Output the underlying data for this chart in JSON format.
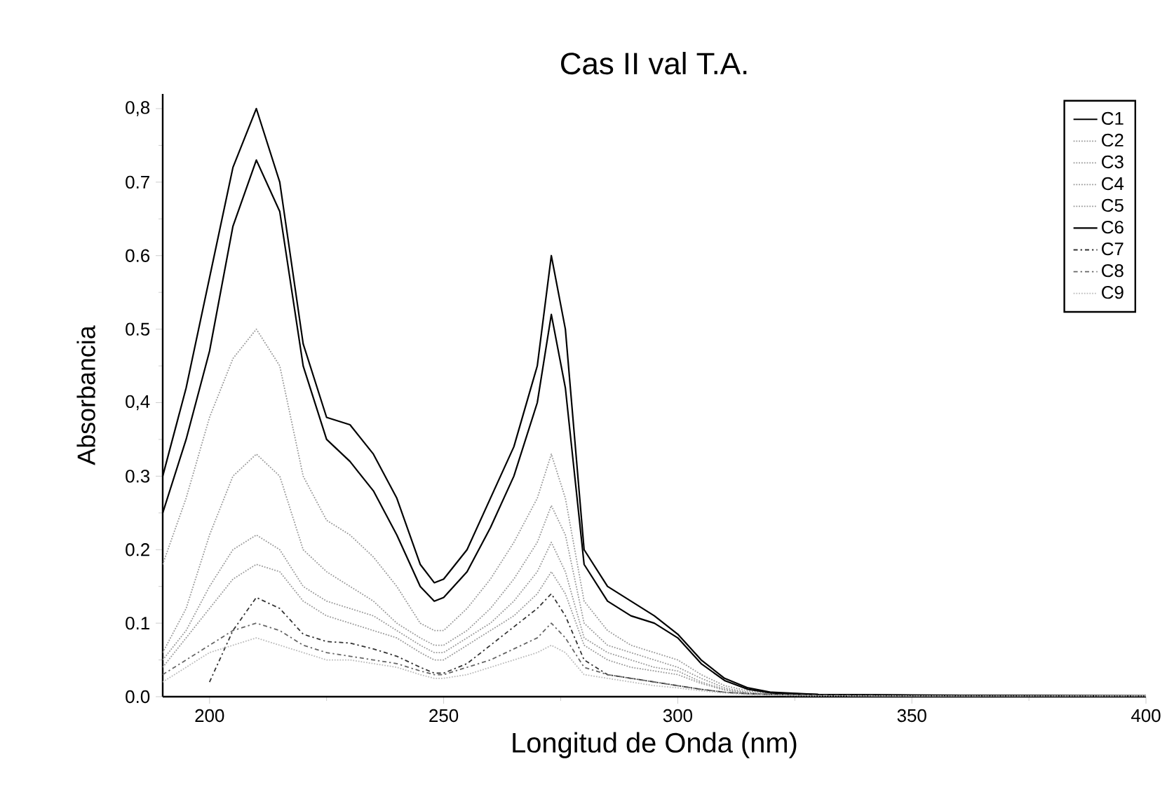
{
  "chart_data": {
    "type": "line",
    "title": "Cas II val T.A.",
    "xlabel": "Longitud de Onda (nm)",
    "ylabel": "Absorbancia",
    "x": [
      190,
      195,
      200,
      205,
      210,
      215,
      220,
      225,
      230,
      235,
      240,
      245,
      248,
      250,
      255,
      260,
      265,
      270,
      273,
      276,
      280,
      285,
      290,
      295,
      300,
      305,
      310,
      315,
      320,
      330,
      350,
      400
    ],
    "xlim": [
      190,
      400
    ],
    "xticks": [
      200,
      250,
      300,
      350,
      400
    ],
    "ylim": [
      0,
      0.82
    ],
    "yticks": [
      {
        "value": 0,
        "label": "0.0"
      },
      {
        "value": 0.1,
        "label": "0.1"
      },
      {
        "value": 0.2,
        "label": "0.2"
      },
      {
        "value": 0.3,
        "label": "0.3"
      },
      {
        "value": 0.4,
        "label": "0,4"
      },
      {
        "value": 0.5,
        "label": "0.5"
      },
      {
        "value": 0.6,
        "label": "0.6"
      },
      {
        "value": 0.7,
        "label": "0.7"
      },
      {
        "value": 0.8,
        "label": "0,8"
      }
    ],
    "grid": false,
    "legend": "top right",
    "marker": "none",
    "series": [
      {
        "name": "C1",
        "color": "#000000",
        "line_style": "solid",
        "values": [
          0.3,
          0.42,
          0.57,
          0.72,
          0.8,
          0.7,
          0.48,
          0.38,
          0.37,
          0.33,
          0.27,
          0.18,
          0.155,
          0.16,
          0.2,
          0.27,
          0.34,
          0.45,
          0.6,
          0.5,
          0.2,
          0.15,
          0.13,
          0.11,
          0.085,
          0.05,
          0.025,
          0.012,
          0.006,
          0.003,
          0.002,
          0.001
        ]
      },
      {
        "name": "C2",
        "color": "#999999",
        "line_style": "dotted",
        "values": [
          0.18,
          0.27,
          0.38,
          0.46,
          0.5,
          0.45,
          0.3,
          0.24,
          0.22,
          0.19,
          0.15,
          0.1,
          0.09,
          0.09,
          0.12,
          0.16,
          0.21,
          0.27,
          0.33,
          0.27,
          0.13,
          0.09,
          0.07,
          0.06,
          0.05,
          0.03,
          0.015,
          0.008,
          0.004,
          0.002,
          0.001,
          0.001
        ]
      },
      {
        "name": "C3",
        "color": "#999999",
        "line_style": "dotted",
        "values": [
          0.06,
          0.12,
          0.22,
          0.3,
          0.33,
          0.3,
          0.2,
          0.17,
          0.15,
          0.13,
          0.1,
          0.08,
          0.07,
          0.07,
          0.09,
          0.12,
          0.16,
          0.21,
          0.26,
          0.22,
          0.1,
          0.07,
          0.06,
          0.05,
          0.04,
          0.025,
          0.012,
          0.006,
          0.003,
          0.002,
          0.001,
          0.001
        ]
      },
      {
        "name": "C4",
        "color": "#999999",
        "line_style": "dotted",
        "values": [
          0.05,
          0.09,
          0.15,
          0.2,
          0.22,
          0.2,
          0.15,
          0.13,
          0.12,
          0.11,
          0.09,
          0.07,
          0.06,
          0.06,
          0.08,
          0.1,
          0.13,
          0.17,
          0.21,
          0.17,
          0.08,
          0.06,
          0.05,
          0.04,
          0.035,
          0.02,
          0.01,
          0.005,
          0.003,
          0.002,
          0.001,
          0.001
        ]
      },
      {
        "name": "C5",
        "color": "#999999",
        "line_style": "dotted",
        "values": [
          0.04,
          0.08,
          0.12,
          0.16,
          0.18,
          0.17,
          0.13,
          0.11,
          0.1,
          0.09,
          0.08,
          0.06,
          0.05,
          0.05,
          0.07,
          0.09,
          0.11,
          0.14,
          0.17,
          0.14,
          0.07,
          0.05,
          0.04,
          0.035,
          0.03,
          0.018,
          0.009,
          0.005,
          0.003,
          0.002,
          0.001,
          0.001
        ]
      },
      {
        "name": "C6",
        "color": "#000000",
        "line_style": "solid",
        "values": [
          0.25,
          0.35,
          0.47,
          0.64,
          0.73,
          0.66,
          0.45,
          0.35,
          0.32,
          0.28,
          0.22,
          0.15,
          0.13,
          0.135,
          0.17,
          0.23,
          0.3,
          0.4,
          0.52,
          0.42,
          0.18,
          0.13,
          0.11,
          0.1,
          0.08,
          0.045,
          0.022,
          0.01,
          0.005,
          0.003,
          0.002,
          0.001
        ]
      },
      {
        "name": "C7",
        "color": "#333333",
        "line_style": "dashed",
        "values": [
          null,
          null,
          0.02,
          0.09,
          0.135,
          0.12,
          0.085,
          0.075,
          0.073,
          0.065,
          0.055,
          0.04,
          0.032,
          0.032,
          0.045,
          0.07,
          0.095,
          0.12,
          0.14,
          0.11,
          0.05,
          0.03,
          0.025,
          0.02,
          0.015,
          0.01,
          0.006,
          0.004,
          0.003,
          0.002,
          0.001,
          0.001
        ]
      },
      {
        "name": "C8",
        "color": "#666666",
        "line_style": "dashed",
        "values": [
          0.03,
          0.05,
          0.07,
          0.09,
          0.1,
          0.09,
          0.07,
          0.06,
          0.055,
          0.05,
          0.045,
          0.035,
          0.03,
          0.03,
          0.04,
          0.05,
          0.065,
          0.08,
          0.1,
          0.08,
          0.04,
          0.03,
          0.025,
          0.02,
          0.015,
          0.01,
          0.006,
          0.004,
          0.003,
          0.002,
          0.001,
          0.001
        ]
      },
      {
        "name": "C9",
        "color": "#bbbbbb",
        "line_style": "dotted",
        "values": [
          0.02,
          0.04,
          0.06,
          0.07,
          0.08,
          0.07,
          0.06,
          0.05,
          0.05,
          0.045,
          0.04,
          0.03,
          0.025,
          0.025,
          0.03,
          0.04,
          0.05,
          0.06,
          0.07,
          0.06,
          0.03,
          0.025,
          0.02,
          0.015,
          0.012,
          0.008,
          0.005,
          0.003,
          0.002,
          0.001,
          0.001,
          0.001
        ]
      }
    ]
  }
}
